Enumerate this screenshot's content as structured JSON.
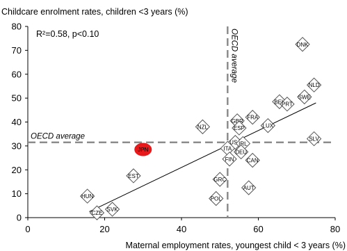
{
  "chart_data": {
    "type": "scatter",
    "title": "",
    "ylabel": "Childcare enrolment rates, children <3 years (%)",
    "xlabel": "Maternal employment rates, youngest child < 3 years (%)",
    "xlim": [
      0,
      80
    ],
    "ylim": [
      0,
      80
    ],
    "xticks": [
      0,
      20,
      40,
      60,
      80
    ],
    "yticks": [
      0,
      10,
      20,
      30,
      40,
      50,
      60,
      70,
      80
    ],
    "grid": false,
    "annotation": "R²=0.58, p<0.10",
    "oecd_average": {
      "x": 52,
      "y": 31.5,
      "horizontal_label": "OECD average",
      "vertical_label": "OECD average"
    },
    "trendline": {
      "x": [
        16,
        75
      ],
      "y": [
        2.5,
        48
      ]
    },
    "points": [
      {
        "label": "DNK",
        "x": 71.5,
        "y": 72.5,
        "highlight": false
      },
      {
        "label": "NLD",
        "x": 74.5,
        "y": 55.5,
        "highlight": false
      },
      {
        "label": "SWE",
        "x": 72,
        "y": 50.5,
        "highlight": false
      },
      {
        "label": "BEL",
        "x": 65.5,
        "y": 48.5,
        "highlight": false
      },
      {
        "label": "PRT",
        "x": 67.5,
        "y": 47.5,
        "highlight": false
      },
      {
        "label": "FRA",
        "x": 58.5,
        "y": 42,
        "highlight": false
      },
      {
        "label": "LUX",
        "x": 62.5,
        "y": 38.5,
        "highlight": false
      },
      {
        "label": "GBR",
        "x": 54.5,
        "y": 40.5,
        "highlight": false
      },
      {
        "label": "ESP",
        "x": 55,
        "y": 37.5,
        "highlight": false
      },
      {
        "label": "NZL",
        "x": 45.5,
        "y": 38,
        "highlight": false
      },
      {
        "label": "SLV",
        "x": 74.5,
        "y": 33,
        "highlight": false
      },
      {
        "label": "USA",
        "x": 54,
        "y": 31.5,
        "highlight": false
      },
      {
        "label": "IRL",
        "x": 56,
        "y": 31,
        "highlight": false
      },
      {
        "label": "ITA",
        "x": 52,
        "y": 29,
        "highlight": false
      },
      {
        "label": "DEU",
        "x": 55.5,
        "y": 27.5,
        "highlight": false
      },
      {
        "label": "FIN",
        "x": 52.5,
        "y": 24.5,
        "highlight": false
      },
      {
        "label": "CAN",
        "x": 58.5,
        "y": 24,
        "highlight": false
      },
      {
        "label": "JPN",
        "x": 30,
        "y": 28.5,
        "highlight": true
      },
      {
        "label": "EST",
        "x": 27.5,
        "y": 17.5,
        "highlight": false
      },
      {
        "label": "GRC",
        "x": 50,
        "y": 16,
        "highlight": false
      },
      {
        "label": "AUT",
        "x": 57.5,
        "y": 12.5,
        "highlight": false
      },
      {
        "label": "POL",
        "x": 49,
        "y": 8,
        "highlight": false
      },
      {
        "label": "HUN",
        "x": 15.5,
        "y": 9,
        "highlight": false
      },
      {
        "label": "SVK",
        "x": 22,
        "y": 3.5,
        "highlight": false
      },
      {
        "label": "CZE",
        "x": 18,
        "y": 2,
        "highlight": false
      }
    ],
    "colors": {
      "marker_fill": "#ffffff",
      "marker_stroke": "#555555",
      "highlight_fill": "#e8191a",
      "reference_line": "#8c8c8c",
      "axis": "#000000",
      "trendline": "#000000"
    }
  }
}
